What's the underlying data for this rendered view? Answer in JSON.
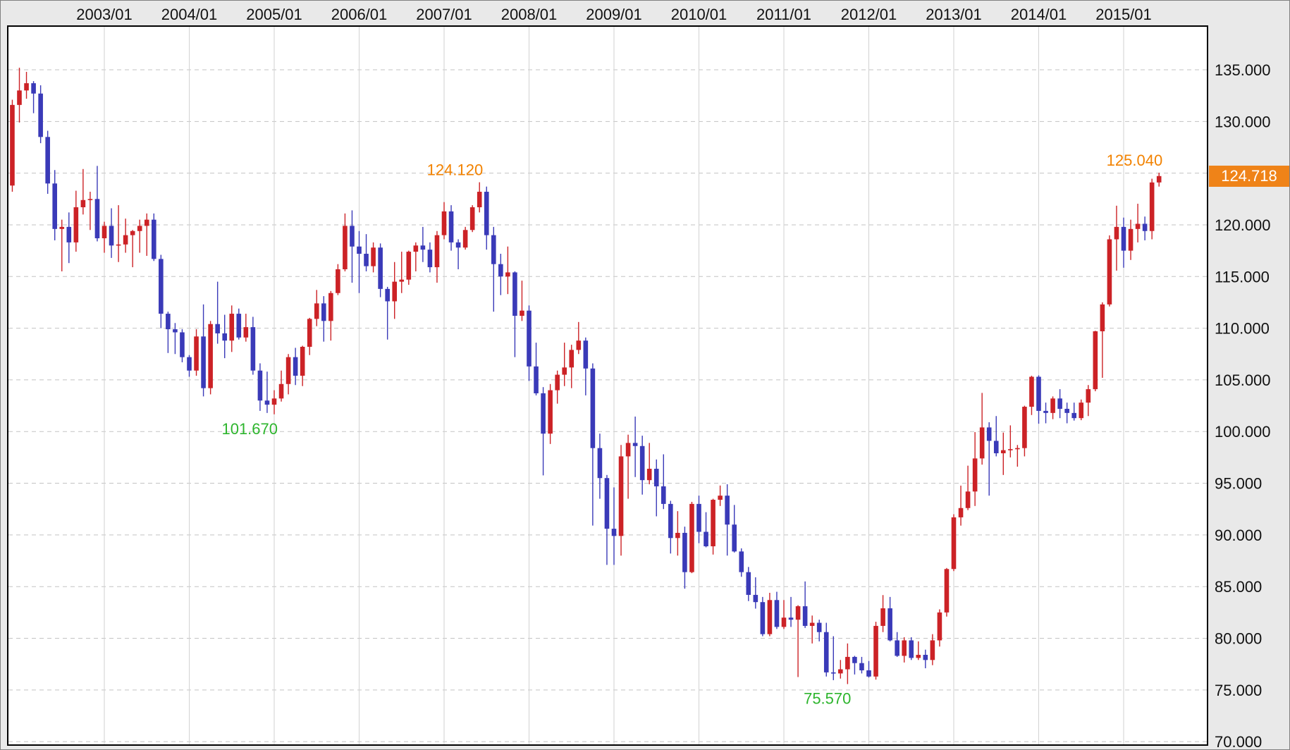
{
  "chart": {
    "x_axis_labels": [
      "2003/01",
      "2004/01",
      "2005/01",
      "2006/01",
      "2007/01",
      "2008/01",
      "2009/01",
      "2010/01",
      "2011/01",
      "2012/01",
      "2013/01",
      "2014/01",
      "2015/01"
    ],
    "y_axis_ticks": [
      {
        "value": 135,
        "label": "135.000"
      },
      {
        "value": 130,
        "label": "130.000"
      },
      {
        "value": 120,
        "label": "120.000"
      },
      {
        "value": 115,
        "label": "115.000"
      },
      {
        "value": 110,
        "label": "110.000"
      },
      {
        "value": 105,
        "label": "105.000"
      },
      {
        "value": 100,
        "label": "100.000"
      },
      {
        "value": 95,
        "label": "95.000"
      },
      {
        "value": 90,
        "label": "90.000"
      },
      {
        "value": 85,
        "label": "85.000"
      },
      {
        "value": 80,
        "label": "80.000"
      },
      {
        "value": 75,
        "label": "75.000"
      },
      {
        "value": 70,
        "label": "70.000"
      }
    ],
    "price_badge": {
      "text": "124.718",
      "value": 124.718
    },
    "annotations": [
      {
        "text": "124.120",
        "date": "2007-06",
        "price": 124.12,
        "placement": "above",
        "color": "#f28200"
      },
      {
        "text": "125.040",
        "date": "2015-06",
        "price": 125.04,
        "placement": "above",
        "color": "#f28200"
      },
      {
        "text": "101.670",
        "date": "2005-01",
        "price": 101.67,
        "placement": "below",
        "color": "#2db52d"
      },
      {
        "text": "75.570",
        "date": "2011-10",
        "price": 75.57,
        "placement": "below",
        "color": "#2db52d"
      }
    ],
    "colors": {
      "up": "#cc2226",
      "down": "#3a3ab8",
      "badge_bg": "#ef8318",
      "badge_fg": "#ffffff",
      "grid_h": "#c3c3c3",
      "grid_v": "#d2d2d2",
      "axis_text": "#111111",
      "plot_bg": "#ffffff",
      "outer_bg": "#e9e9e9",
      "border": "#000000"
    }
  },
  "chart_data": {
    "type": "candlestick",
    "timeframe_note": "one candle per month, year gridlines labeled at top",
    "ylim": [
      69.5,
      139.3
    ],
    "y_gridline_step": 5,
    "columns": [
      "date",
      "open",
      "high",
      "low",
      "close"
    ],
    "candles": [
      [
        "2001-12",
        123.8,
        132.1,
        123.2,
        131.6
      ],
      [
        "2002-01",
        131.6,
        135.2,
        129.9,
        133.0
      ],
      [
        "2002-02",
        133.0,
        134.8,
        132.2,
        133.7
      ],
      [
        "2002-03",
        133.7,
        133.9,
        130.8,
        132.7
      ],
      [
        "2002-04",
        132.7,
        133.5,
        127.9,
        128.5
      ],
      [
        "2002-05",
        128.5,
        129.1,
        123.0,
        124.0
      ],
      [
        "2002-06",
        124.0,
        125.3,
        118.5,
        119.6
      ],
      [
        "2002-07",
        119.6,
        120.5,
        115.5,
        119.8
      ],
      [
        "2002-08",
        119.8,
        121.2,
        116.3,
        118.3
      ],
      [
        "2002-09",
        118.3,
        123.3,
        117.4,
        121.7
      ],
      [
        "2002-10",
        121.7,
        125.4,
        121.0,
        122.4
      ],
      [
        "2002-11",
        122.4,
        123.2,
        119.5,
        122.5
      ],
      [
        "2002-12",
        122.5,
        125.7,
        118.4,
        118.7
      ],
      [
        "2003-01",
        118.7,
        120.3,
        117.3,
        119.9
      ],
      [
        "2003-02",
        119.9,
        121.6,
        116.8,
        118.0
      ],
      [
        "2003-03",
        118.0,
        121.9,
        116.4,
        118.1
      ],
      [
        "2003-04",
        118.1,
        120.6,
        117.3,
        119.0
      ],
      [
        "2003-05",
        119.0,
        119.5,
        115.9,
        119.4
      ],
      [
        "2003-06",
        119.4,
        120.5,
        117.3,
        119.9
      ],
      [
        "2003-07",
        119.9,
        121.1,
        117.0,
        120.5
      ],
      [
        "2003-08",
        120.5,
        121.1,
        116.5,
        116.7
      ],
      [
        "2003-09",
        116.7,
        117.1,
        110.0,
        111.4
      ],
      [
        "2003-10",
        111.4,
        111.6,
        107.6,
        109.9
      ],
      [
        "2003-11",
        109.9,
        110.5,
        107.5,
        109.6
      ],
      [
        "2003-12",
        109.6,
        109.9,
        106.7,
        107.2
      ],
      [
        "2004-01",
        107.2,
        107.4,
        105.3,
        105.9
      ],
      [
        "2004-02",
        105.9,
        109.9,
        105.4,
        109.2
      ],
      [
        "2004-03",
        109.2,
        112.3,
        103.4,
        104.2
      ],
      [
        "2004-04",
        104.2,
        110.7,
        103.6,
        110.4
      ],
      [
        "2004-05",
        110.4,
        114.5,
        108.5,
        109.5
      ],
      [
        "2004-06",
        109.5,
        111.3,
        107.1,
        108.8
      ],
      [
        "2004-07",
        108.8,
        112.2,
        107.7,
        111.4
      ],
      [
        "2004-08",
        111.4,
        111.9,
        108.9,
        109.1
      ],
      [
        "2004-09",
        109.1,
        111.4,
        108.7,
        110.1
      ],
      [
        "2004-10",
        110.1,
        111.1,
        105.5,
        105.9
      ],
      [
        "2004-11",
        105.9,
        106.6,
        102.0,
        103.0
      ],
      [
        "2004-12",
        103.0,
        105.8,
        101.8,
        102.6
      ],
      [
        "2005-01",
        102.6,
        104.0,
        101.67,
        103.2
      ],
      [
        "2005-02",
        103.2,
        105.9,
        102.9,
        104.6
      ],
      [
        "2005-03",
        104.6,
        107.5,
        103.6,
        107.2
      ],
      [
        "2005-04",
        107.2,
        108.1,
        104.5,
        105.4
      ],
      [
        "2005-05",
        105.4,
        108.3,
        104.4,
        108.2
      ],
      [
        "2005-06",
        108.2,
        111.0,
        107.4,
        110.9
      ],
      [
        "2005-07",
        110.9,
        113.7,
        110.2,
        112.4
      ],
      [
        "2005-08",
        112.4,
        113.1,
        108.7,
        110.7
      ],
      [
        "2005-09",
        110.7,
        113.6,
        108.8,
        113.4
      ],
      [
        "2005-10",
        113.4,
        116.2,
        113.2,
        115.7
      ],
      [
        "2005-11",
        115.7,
        121.1,
        115.5,
        119.9
      ],
      [
        "2005-12",
        119.9,
        121.4,
        114.4,
        117.9
      ],
      [
        "2006-01",
        117.9,
        119.4,
        113.4,
        117.2
      ],
      [
        "2006-02",
        117.2,
        119.1,
        115.5,
        116.0
      ],
      [
        "2006-03",
        116.0,
        118.3,
        115.4,
        117.8
      ],
      [
        "2006-04",
        117.8,
        118.2,
        113.0,
        113.8
      ],
      [
        "2006-05",
        113.8,
        114.0,
        108.9,
        112.6
      ],
      [
        "2006-06",
        112.6,
        116.4,
        110.9,
        114.5
      ],
      [
        "2006-07",
        114.5,
        117.4,
        113.4,
        114.7
      ],
      [
        "2006-08",
        114.7,
        117.5,
        114.2,
        117.4
      ],
      [
        "2006-09",
        117.4,
        118.3,
        115.5,
        118.0
      ],
      [
        "2006-10",
        118.0,
        119.8,
        116.4,
        117.6
      ],
      [
        "2006-11",
        117.6,
        118.3,
        115.4,
        115.9
      ],
      [
        "2006-12",
        115.9,
        119.4,
        114.4,
        119.0
      ],
      [
        "2007-01",
        119.0,
        122.2,
        118.6,
        121.3
      ],
      [
        "2007-02",
        121.3,
        121.9,
        117.5,
        118.3
      ],
      [
        "2007-03",
        118.3,
        118.6,
        115.7,
        117.8
      ],
      [
        "2007-04",
        117.8,
        119.8,
        117.6,
        119.5
      ],
      [
        "2007-05",
        119.5,
        121.9,
        119.3,
        121.7
      ],
      [
        "2007-06",
        121.7,
        124.12,
        121.2,
        123.2
      ],
      [
        "2007-07",
        123.2,
        123.7,
        117.6,
        119.0
      ],
      [
        "2007-08",
        119.0,
        119.8,
        111.6,
        116.2
      ],
      [
        "2007-09",
        116.2,
        117.2,
        113.2,
        115.0
      ],
      [
        "2007-10",
        115.0,
        117.9,
        113.3,
        115.4
      ],
      [
        "2007-11",
        115.4,
        115.5,
        107.2,
        111.2
      ],
      [
        "2007-12",
        111.2,
        114.6,
        110.7,
        111.7
      ],
      [
        "2008-01",
        111.7,
        112.2,
        104.9,
        106.3
      ],
      [
        "2008-02",
        106.3,
        108.6,
        103.5,
        103.7
      ],
      [
        "2008-03",
        103.7,
        104.3,
        95.76,
        99.8
      ],
      [
        "2008-04",
        99.8,
        104.6,
        98.8,
        104.0
      ],
      [
        "2008-05",
        104.0,
        105.9,
        102.7,
        105.5
      ],
      [
        "2008-06",
        105.5,
        108.6,
        104.4,
        106.2
      ],
      [
        "2008-07",
        106.2,
        108.4,
        104.2,
        107.9
      ],
      [
        "2008-08",
        107.9,
        110.6,
        107.5,
        108.8
      ],
      [
        "2008-09",
        108.8,
        109.1,
        103.5,
        106.1
      ],
      [
        "2008-10",
        106.1,
        106.6,
        90.9,
        98.4
      ],
      [
        "2008-11",
        98.4,
        99.8,
        93.5,
        95.5
      ],
      [
        "2008-12",
        95.5,
        95.8,
        87.1,
        90.6
      ],
      [
        "2009-01",
        90.6,
        94.6,
        87.1,
        89.9
      ],
      [
        "2009-02",
        89.9,
        98.7,
        88.0,
        97.6
      ],
      [
        "2009-03",
        97.6,
        99.7,
        93.5,
        98.9
      ],
      [
        "2009-04",
        98.9,
        101.45,
        95.6,
        98.6
      ],
      [
        "2009-05",
        98.6,
        99.6,
        93.9,
        95.3
      ],
      [
        "2009-06",
        95.3,
        98.9,
        94.9,
        96.4
      ],
      [
        "2009-07",
        96.4,
        97.3,
        91.8,
        94.7
      ],
      [
        "2009-08",
        94.7,
        97.8,
        92.5,
        93.0
      ],
      [
        "2009-09",
        93.0,
        93.3,
        88.2,
        89.7
      ],
      [
        "2009-10",
        89.7,
        92.3,
        88.0,
        90.2
      ],
      [
        "2009-11",
        90.2,
        90.8,
        84.8,
        86.4
      ],
      [
        "2009-12",
        86.4,
        93.2,
        86.3,
        93.0
      ],
      [
        "2010-01",
        93.0,
        93.8,
        89.2,
        90.3
      ],
      [
        "2010-02",
        90.3,
        92.2,
        88.8,
        88.9
      ],
      [
        "2010-03",
        88.9,
        93.5,
        88.1,
        93.4
      ],
      [
        "2010-04",
        93.4,
        94.78,
        92.8,
        93.8
      ],
      [
        "2010-05",
        93.8,
        94.9,
        88.0,
        91.0
      ],
      [
        "2010-06",
        91.0,
        92.9,
        88.3,
        88.4
      ],
      [
        "2010-07",
        88.4,
        88.7,
        85.95,
        86.4
      ],
      [
        "2010-08",
        86.4,
        86.9,
        83.6,
        84.2
      ],
      [
        "2010-09",
        84.2,
        85.9,
        82.87,
        83.5
      ],
      [
        "2010-10",
        83.5,
        84.0,
        80.2,
        80.4
      ],
      [
        "2010-11",
        80.4,
        84.4,
        80.2,
        83.7
      ],
      [
        "2010-12",
        83.7,
        84.5,
        80.9,
        81.1
      ],
      [
        "2011-01",
        81.1,
        83.7,
        80.9,
        82.0
      ],
      [
        "2011-02",
        82.0,
        84.0,
        81.1,
        81.8
      ],
      [
        "2011-03",
        81.8,
        83.2,
        76.25,
        83.1
      ],
      [
        "2011-04",
        83.1,
        85.5,
        81.0,
        81.2
      ],
      [
        "2011-05",
        81.2,
        82.2,
        79.5,
        81.5
      ],
      [
        "2011-06",
        81.5,
        81.8,
        79.7,
        80.6
      ],
      [
        "2011-07",
        80.6,
        81.5,
        76.3,
        76.7
      ],
      [
        "2011-08",
        76.7,
        80.2,
        75.95,
        76.6
      ],
      [
        "2011-09",
        76.6,
        77.9,
        76.1,
        77.0
      ],
      [
        "2011-10",
        77.0,
        79.5,
        75.57,
        78.2
      ],
      [
        "2011-11",
        78.2,
        78.3,
        76.5,
        77.6
      ],
      [
        "2011-12",
        77.6,
        78.2,
        76.6,
        76.9
      ],
      [
        "2012-01",
        76.9,
        77.8,
        76.2,
        76.3
      ],
      [
        "2012-02",
        76.3,
        81.6,
        76.0,
        81.2
      ],
      [
        "2012-03",
        81.2,
        84.18,
        80.6,
        82.9
      ],
      [
        "2012-04",
        82.9,
        84.0,
        79.7,
        79.8
      ],
      [
        "2012-05",
        79.8,
        80.6,
        78.2,
        78.3
      ],
      [
        "2012-06",
        78.3,
        80.1,
        77.66,
        79.8
      ],
      [
        "2012-07",
        79.8,
        80.1,
        77.9,
        78.1
      ],
      [
        "2012-08",
        78.1,
        79.7,
        77.9,
        78.4
      ],
      [
        "2012-09",
        78.4,
        78.9,
        77.1,
        77.9
      ],
      [
        "2012-10",
        77.9,
        80.4,
        77.4,
        79.8
      ],
      [
        "2012-11",
        79.8,
        82.8,
        79.2,
        82.5
      ],
      [
        "2012-12",
        82.5,
        86.8,
        82.1,
        86.7
      ],
      [
        "2013-01",
        86.7,
        92.0,
        86.5,
        91.7
      ],
      [
        "2013-02",
        91.7,
        94.77,
        90.9,
        92.6
      ],
      [
        "2013-03",
        92.6,
        96.7,
        92.4,
        94.2
      ],
      [
        "2013-04",
        94.2,
        99.95,
        92.8,
        97.4
      ],
      [
        "2013-05",
        97.4,
        103.74,
        96.8,
        100.4
      ],
      [
        "2013-06",
        100.4,
        100.9,
        93.8,
        99.1
      ],
      [
        "2013-07",
        99.1,
        101.5,
        97.6,
        97.9
      ],
      [
        "2013-08",
        97.9,
        99.9,
        95.8,
        98.2
      ],
      [
        "2013-09",
        98.2,
        100.6,
        97.5,
        98.3
      ],
      [
        "2013-10",
        98.3,
        98.7,
        96.6,
        98.4
      ],
      [
        "2013-11",
        98.4,
        102.5,
        97.6,
        102.4
      ],
      [
        "2013-12",
        102.4,
        105.4,
        101.6,
        105.3
      ],
      [
        "2014-01",
        105.3,
        105.44,
        100.76,
        102.0
      ],
      [
        "2014-02",
        102.0,
        102.8,
        100.8,
        101.8
      ],
      [
        "2014-03",
        101.8,
        103.4,
        101.2,
        103.2
      ],
      [
        "2014-04",
        103.2,
        104.1,
        101.3,
        102.2
      ],
      [
        "2014-05",
        102.2,
        102.8,
        100.8,
        101.8
      ],
      [
        "2014-06",
        101.8,
        102.8,
        101.06,
        101.3
      ],
      [
        "2014-07",
        101.3,
        103.1,
        101.1,
        102.8
      ],
      [
        "2014-08",
        102.8,
        104.5,
        101.5,
        104.1
      ],
      [
        "2014-09",
        104.1,
        109.75,
        103.9,
        109.7
      ],
      [
        "2014-10",
        109.7,
        112.5,
        105.2,
        112.3
      ],
      [
        "2014-11",
        112.3,
        118.98,
        112.1,
        118.6
      ],
      [
        "2014-12",
        118.6,
        121.85,
        115.57,
        119.8
      ],
      [
        "2015-01",
        119.8,
        120.7,
        115.85,
        117.5
      ],
      [
        "2015-02",
        117.5,
        120.5,
        116.6,
        119.6
      ],
      [
        "2015-03",
        119.6,
        122.04,
        118.3,
        120.1
      ],
      [
        "2015-04",
        120.1,
        120.8,
        118.5,
        119.4
      ],
      [
        "2015-05",
        119.4,
        124.46,
        118.6,
        124.1
      ],
      [
        "2015-06",
        124.1,
        125.04,
        123.7,
        124.718
      ]
    ]
  }
}
